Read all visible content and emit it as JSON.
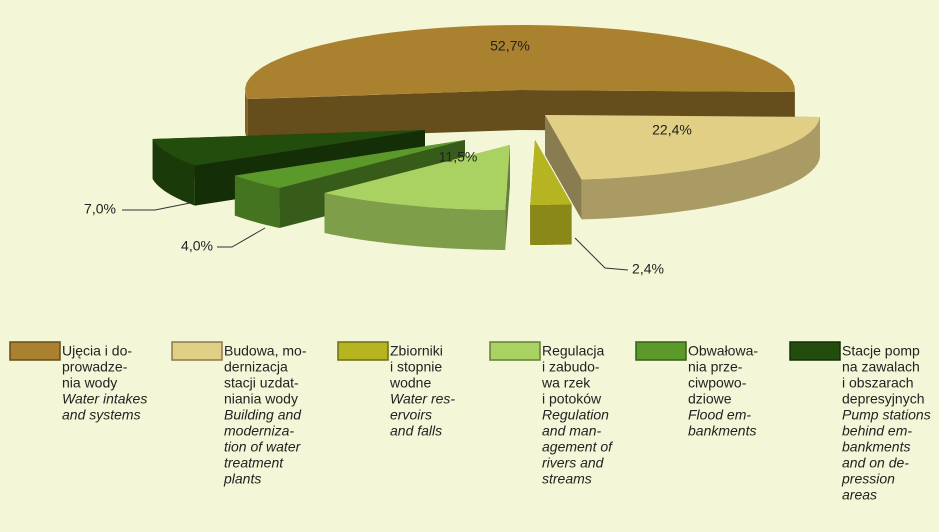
{
  "chart_data": {
    "type": "pie",
    "values": [
      52.7,
      22.4,
      2.4,
      11.5,
      4.0,
      7.0
    ],
    "value_labels": [
      "52,7%",
      "22,4%",
      "2,4%",
      "11,5%",
      "4,0%",
      "7,0%"
    ],
    "colors": [
      "#a9812f",
      "#e2cf86",
      "#b6b521",
      "#a9d262",
      "#5b9a2a",
      "#224d0c"
    ],
    "categories": [
      [
        "Ujęcia i do-",
        "prowadze-",
        "nia wody"
      ],
      [
        "Budowa, mo-",
        "dernizacja",
        "stacji uzdat-",
        "niania wody"
      ],
      [
        "Zbiorniki",
        "i stopnie",
        "wodne"
      ],
      [
        "Regulacja",
        "i zabudo-",
        "wa rzek",
        "i potoków"
      ],
      [
        "Obwałowa-",
        "nia prze-",
        "ciwpowo-",
        "dziowe"
      ],
      [
        "Stacje pomp",
        "na zawalach",
        "i obszarach",
        "depresyjnych"
      ]
    ],
    "categories_en": [
      [
        "Water intakes",
        "and systems"
      ],
      [
        "Building and",
        "moderniza-",
        "tion of water",
        "treatment",
        "plants"
      ],
      [
        "Water res-",
        "ervoirs",
        "and falls"
      ],
      [
        "Regulation",
        "and man-",
        "agement of",
        "rivers and",
        "streams"
      ],
      [
        "Flood em-",
        "bankments"
      ],
      [
        "Pump stations",
        "behind em-",
        "bankments",
        "and on de-",
        "pression",
        "areas"
      ]
    ]
  }
}
